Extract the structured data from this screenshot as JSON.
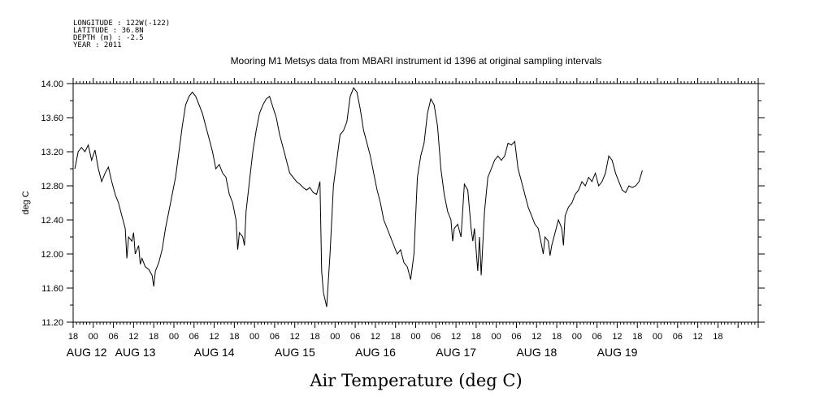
{
  "meta": {
    "longitude": "LONGITUDE : 122W(-122)",
    "latitude": "LATITUDE : 36.8N",
    "depth": "DEPTH (m) : -2.5",
    "year": "YEAR : 2011"
  },
  "chart_data": {
    "type": "line",
    "title": "Mooring M1 Metsys data from MBARI instrument id 1396 at original sampling intervals",
    "xlabel": "Air Temperature (deg C)",
    "ylabel": "deg C",
    "ylim": [
      11.2,
      14.0
    ],
    "xlim": [
      -6,
      198
    ],
    "x_units": "hours since 2011-08-12 00:00",
    "y_ticks": [
      "11.20",
      "11.60",
      "12.00",
      "12.40",
      "12.80",
      "13.20",
      "13.60",
      "14.00"
    ],
    "y_tick_values": [
      11.2,
      11.6,
      12.0,
      12.4,
      12.8,
      13.2,
      13.6,
      14.0
    ],
    "hour_ticks": [
      "18",
      "00",
      "06",
      "12",
      "18",
      "00",
      "06",
      "12",
      "18",
      "00",
      "06",
      "12",
      "18",
      "00",
      "06",
      "12",
      "18",
      "00",
      "06",
      "12",
      "18",
      "00",
      "06",
      "12",
      "18",
      "00",
      "06",
      "12",
      "18",
      "00",
      "06",
      "12",
      "18"
    ],
    "hour_tick_values": [
      -6,
      0,
      6,
      12,
      18,
      24,
      30,
      36,
      42,
      48,
      54,
      60,
      66,
      72,
      78,
      84,
      90,
      96,
      102,
      108,
      114,
      120,
      126,
      132,
      138,
      144,
      150,
      156,
      162,
      168,
      174,
      180,
      186
    ],
    "date_labels": [
      "AUG 12",
      "AUG 13",
      "AUG 14",
      "AUG 15",
      "AUG 16",
      "AUG 17",
      "AUG 18",
      "AUG 19"
    ],
    "date_label_values": [
      -8,
      6.5,
      30,
      54,
      78,
      102,
      126,
      150
    ],
    "grid": false,
    "series": [
      {
        "values": [
          [
            -5.5,
            13.0
          ],
          [
            -4.5,
            13.2
          ],
          [
            -3.5,
            13.25
          ],
          [
            -2.5,
            13.2
          ],
          [
            -1.5,
            13.28
          ],
          [
            -0.5,
            13.1
          ],
          [
            0.5,
            13.22
          ],
          [
            1.5,
            13.0
          ],
          [
            2.5,
            12.85
          ],
          [
            3.5,
            12.95
          ],
          [
            4.5,
            13.02
          ],
          [
            5.5,
            12.85
          ],
          [
            6.5,
            12.7
          ],
          [
            7.5,
            12.6
          ],
          [
            8.5,
            12.45
          ],
          [
            9.5,
            12.3
          ],
          [
            10,
            11.95
          ],
          [
            10.5,
            12.2
          ],
          [
            11.5,
            12.15
          ],
          [
            12,
            12.25
          ],
          [
            12.5,
            12.0
          ],
          [
            13.5,
            12.1
          ],
          [
            14,
            11.88
          ],
          [
            14.5,
            11.95
          ],
          [
            15.5,
            11.85
          ],
          [
            16.5,
            11.82
          ],
          [
            17.5,
            11.75
          ],
          [
            18,
            11.62
          ],
          [
            18.5,
            11.8
          ],
          [
            19.5,
            11.9
          ],
          [
            20.5,
            12.05
          ],
          [
            21.5,
            12.3
          ],
          [
            22.5,
            12.5
          ],
          [
            23.5,
            12.7
          ],
          [
            24.5,
            12.9
          ],
          [
            25.5,
            13.2
          ],
          [
            26.5,
            13.5
          ],
          [
            27.5,
            13.75
          ],
          [
            28.5,
            13.85
          ],
          [
            29.5,
            13.9
          ],
          [
            30.5,
            13.85
          ],
          [
            31.5,
            13.75
          ],
          [
            32.5,
            13.65
          ],
          [
            33.5,
            13.5
          ],
          [
            34.5,
            13.35
          ],
          [
            35.5,
            13.2
          ],
          [
            36.5,
            13.0
          ],
          [
            37.5,
            13.05
          ],
          [
            38.5,
            12.95
          ],
          [
            39.5,
            12.9
          ],
          [
            40.5,
            12.7
          ],
          [
            41.5,
            12.6
          ],
          [
            42.5,
            12.4
          ],
          [
            43,
            12.05
          ],
          [
            43.5,
            12.25
          ],
          [
            44.5,
            12.2
          ],
          [
            45,
            12.1
          ],
          [
            45.5,
            12.5
          ],
          [
            46.5,
            12.85
          ],
          [
            47.5,
            13.2
          ],
          [
            48.5,
            13.45
          ],
          [
            49.5,
            13.65
          ],
          [
            50.5,
            13.75
          ],
          [
            51.5,
            13.82
          ],
          [
            52.5,
            13.85
          ],
          [
            53.5,
            13.72
          ],
          [
            54.5,
            13.6
          ],
          [
            55.5,
            13.4
          ],
          [
            56.5,
            13.25
          ],
          [
            57.5,
            13.1
          ],
          [
            58.5,
            12.95
          ],
          [
            59.5,
            12.9
          ],
          [
            60.5,
            12.85
          ],
          [
            61.5,
            12.82
          ],
          [
            62.5,
            12.78
          ],
          [
            63.5,
            12.75
          ],
          [
            64.5,
            12.78
          ],
          [
            65.5,
            12.72
          ],
          [
            66.5,
            12.7
          ],
          [
            67.5,
            12.85
          ],
          [
            68,
            11.8
          ],
          [
            68.5,
            11.55
          ],
          [
            69.5,
            11.38
          ],
          [
            70.5,
            12.0
          ],
          [
            71.5,
            12.8
          ],
          [
            72.5,
            13.1
          ],
          [
            73.5,
            13.4
          ],
          [
            74.5,
            13.45
          ],
          [
            75.5,
            13.55
          ],
          [
            76.5,
            13.85
          ],
          [
            77.5,
            13.95
          ],
          [
            78.5,
            13.9
          ],
          [
            79.5,
            13.7
          ],
          [
            80.5,
            13.45
          ],
          [
            81.5,
            13.3
          ],
          [
            82.5,
            13.15
          ],
          [
            83.5,
            12.95
          ],
          [
            84.5,
            12.75
          ],
          [
            85.5,
            12.6
          ],
          [
            86.5,
            12.4
          ],
          [
            87.5,
            12.3
          ],
          [
            88.5,
            12.2
          ],
          [
            89.5,
            12.1
          ],
          [
            90.5,
            12.0
          ],
          [
            91.5,
            12.05
          ],
          [
            92.5,
            11.9
          ],
          [
            93.5,
            11.85
          ],
          [
            94.5,
            11.7
          ],
          [
            95.5,
            12.0
          ],
          [
            96.5,
            12.9
          ],
          [
            97.5,
            13.15
          ],
          [
            98.5,
            13.3
          ],
          [
            99.5,
            13.65
          ],
          [
            100.5,
            13.82
          ],
          [
            101.5,
            13.75
          ],
          [
            102.5,
            13.5
          ],
          [
            103.5,
            13.0
          ],
          [
            104.5,
            12.7
          ],
          [
            105.5,
            12.5
          ],
          [
            106.5,
            12.4
          ],
          [
            107,
            12.15
          ],
          [
            107.5,
            12.3
          ],
          [
            108.5,
            12.35
          ],
          [
            109.5,
            12.2
          ],
          [
            110.5,
            12.82
          ],
          [
            111.5,
            12.75
          ],
          [
            112.5,
            12.3
          ],
          [
            113,
            12.15
          ],
          [
            113.5,
            12.3
          ],
          [
            114.5,
            11.8
          ],
          [
            115,
            12.2
          ],
          [
            115.5,
            11.75
          ],
          [
            116.5,
            12.5
          ],
          [
            117.5,
            12.9
          ],
          [
            118.5,
            13.0
          ],
          [
            119.5,
            13.1
          ],
          [
            120.5,
            13.15
          ],
          [
            121.5,
            13.1
          ],
          [
            122.5,
            13.15
          ],
          [
            123.5,
            13.3
          ],
          [
            124.5,
            13.28
          ],
          [
            125.5,
            13.32
          ],
          [
            126.5,
            13.0
          ],
          [
            127.5,
            12.85
          ],
          [
            128.5,
            12.7
          ],
          [
            129.5,
            12.55
          ],
          [
            130.5,
            12.45
          ],
          [
            131.5,
            12.35
          ],
          [
            132.5,
            12.3
          ],
          [
            133.5,
            12.1
          ],
          [
            134,
            12.0
          ],
          [
            134.5,
            12.2
          ],
          [
            135.5,
            12.15
          ],
          [
            136,
            11.98
          ],
          [
            136.5,
            12.1
          ],
          [
            137.5,
            12.25
          ],
          [
            138.5,
            12.4
          ],
          [
            139.5,
            12.3
          ],
          [
            140,
            12.1
          ],
          [
            140.5,
            12.45
          ],
          [
            141.5,
            12.55
          ],
          [
            142.5,
            12.6
          ],
          [
            143.5,
            12.7
          ],
          [
            144.5,
            12.75
          ],
          [
            145.5,
            12.85
          ],
          [
            146.5,
            12.8
          ],
          [
            147.5,
            12.9
          ],
          [
            148.5,
            12.85
          ],
          [
            149.5,
            12.95
          ],
          [
            150.5,
            12.8
          ],
          [
            151.5,
            12.85
          ],
          [
            152.5,
            12.95
          ],
          [
            153.5,
            13.15
          ],
          [
            154.5,
            13.1
          ],
          [
            155.5,
            12.95
          ],
          [
            156.5,
            12.85
          ],
          [
            157.5,
            12.75
          ],
          [
            158.5,
            12.72
          ],
          [
            159.5,
            12.8
          ],
          [
            160.5,
            12.78
          ],
          [
            161.5,
            12.8
          ],
          [
            162.5,
            12.85
          ],
          [
            163.5,
            12.98
          ]
        ]
      }
    ]
  }
}
